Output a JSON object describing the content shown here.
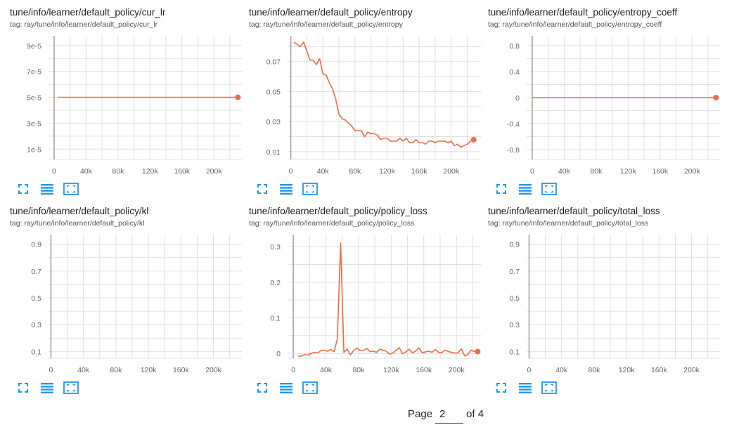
{
  "theme": {
    "accent": "#f26b43",
    "axis": "#9e9e9e",
    "grid": "#e0e0e0",
    "icon": "#2196f3"
  },
  "x_ticks": [
    "0",
    "40k",
    "80k",
    "120k",
    "160k",
    "200k"
  ],
  "cards": [
    {
      "title": "tune/info/learner/default_policy/cur_lr",
      "tag": "tag: ray/tune/info/learner/default_policy/cur_lr"
    },
    {
      "title": "tune/info/learner/default_policy/entropy",
      "tag": "tag: ray/tune/info/learner/default_policy/entropy"
    },
    {
      "title": "tune/info/learner/default_policy/entropy_coeff",
      "tag": "tag: ray/tune/info/learner/default_policy/entropy_coeff"
    },
    {
      "title": "tune/info/learner/default_policy/kl",
      "tag": "tag: ray/tune/info/learner/default_policy/kl"
    },
    {
      "title": "tune/info/learner/default_policy/policy_loss",
      "tag": "tag: ray/tune/info/learner/default_policy/policy_loss"
    },
    {
      "title": "tune/info/learner/default_policy/total_loss",
      "tag": "tag: ray/tune/info/learner/default_policy/total_loss"
    }
  ],
  "chart_data": [
    {
      "type": "line",
      "title": "tune/info/learner/default_policy/cur_lr",
      "xlim": [
        -7000,
        235000
      ],
      "ylim": [
        2e-06,
        9.75e-05
      ],
      "xticks": [
        0,
        40000,
        80000,
        120000,
        160000,
        200000
      ],
      "yticks": [
        "9e-5",
        "7e-5",
        "5e-5",
        "3e-5",
        "1e-5"
      ],
      "ytick_values": [
        9e-05,
        7e-05,
        5e-05,
        3e-05,
        1e-05
      ],
      "series": [
        {
          "x": [
            5000,
            230000
          ],
          "y": [
            5e-05,
            5e-05
          ]
        }
      ]
    },
    {
      "type": "line",
      "title": "tune/info/learner/default_policy/entropy",
      "xlim": [
        -4000,
        237000
      ],
      "ylim": [
        0.0048,
        0.0872
      ],
      "xticks": [
        0,
        40000,
        80000,
        120000,
        160000,
        200000
      ],
      "yticks": [
        "0.07",
        "0.05",
        "0.03",
        "0.01"
      ],
      "ytick_values": [
        0.07,
        0.05,
        0.03,
        0.01
      ],
      "series": [
        {
          "x": [
            4000,
            12000,
            16000,
            20000,
            24000,
            28000,
            32000,
            36000,
            40000,
            44000,
            48000,
            52000,
            56000,
            60000,
            64000,
            68000,
            72000,
            76000,
            80000,
            84000,
            88000,
            92000,
            96000,
            100000,
            104000,
            108000,
            112000,
            116000,
            120000,
            124000,
            128000,
            132000,
            136000,
            140000,
            144000,
            148000,
            152000,
            156000,
            160000,
            164000,
            168000,
            172000,
            176000,
            180000,
            184000,
            188000,
            192000,
            196000,
            200000,
            204000,
            208000,
            212000,
            216000,
            220000,
            224000,
            228000
          ],
          "y": [
            0.083,
            0.08,
            0.083,
            0.077,
            0.071,
            0.071,
            0.068,
            0.072,
            0.062,
            0.061,
            0.056,
            0.052,
            0.045,
            0.035,
            0.032,
            0.031,
            0.029,
            0.027,
            0.024,
            0.024,
            0.024,
            0.02,
            0.023,
            0.022,
            0.022,
            0.021,
            0.018,
            0.019,
            0.019,
            0.017,
            0.017,
            0.017,
            0.019,
            0.017,
            0.019,
            0.016,
            0.016,
            0.018,
            0.016,
            0.016,
            0.015,
            0.017,
            0.017,
            0.016,
            0.017,
            0.017,
            0.017,
            0.016,
            0.017,
            0.014,
            0.015,
            0.013,
            0.014,
            0.015,
            0.017,
            0.018
          ]
        }
      ]
    },
    {
      "type": "line",
      "title": "tune/info/learner/default_policy/entropy_coeff",
      "xlim": [
        -7000,
        235000
      ],
      "ylim": [
        -0.95,
        0.95
      ],
      "xticks": [
        0,
        40000,
        80000,
        120000,
        160000,
        200000
      ],
      "yticks": [
        "0.8",
        "0.4",
        "0",
        "-0.4",
        "-0.8"
      ],
      "ytick_values": [
        0.8,
        0.4,
        0,
        -0.4,
        -0.8
      ],
      "series": [
        {
          "x": [
            0,
            230000
          ],
          "y": [
            0,
            0
          ]
        }
      ]
    },
    {
      "type": "line",
      "title": "tune/info/learner/default_policy/kl",
      "xlim": [
        -3000,
        235000
      ],
      "ylim": [
        0.0498,
        0.9714
      ],
      "xticks": [
        0,
        40000,
        80000,
        120000,
        160000,
        200000
      ],
      "yticks": [
        "0.9",
        "0.7",
        "0.5",
        "0.3",
        "0.1"
      ],
      "ytick_values": [
        0.9,
        0.7,
        0.5,
        0.3,
        0.1
      ],
      "series": []
    },
    {
      "type": "line",
      "title": "tune/info/learner/default_policy/policy_loss",
      "xlim": [
        -7000,
        230000
      ],
      "ylim": [
        -0.0137,
        0.3339
      ],
      "xticks": [
        0,
        40000,
        80000,
        120000,
        160000,
        200000
      ],
      "yticks": [
        "0.3",
        "0.2",
        "0.1",
        "0"
      ],
      "ytick_values": [
        0.3,
        0.2,
        0.1,
        0
      ],
      "series": [
        {
          "x": [
            6000,
            10000,
            14000,
            18000,
            22000,
            26000,
            30000,
            34000,
            38000,
            42000,
            46000,
            50000,
            54000,
            58000,
            62000,
            66000,
            70000,
            74000,
            78000,
            82000,
            86000,
            90000,
            94000,
            98000,
            102000,
            106000,
            110000,
            114000,
            118000,
            122000,
            126000,
            130000,
            134000,
            138000,
            142000,
            146000,
            150000,
            154000,
            158000,
            162000,
            166000,
            170000,
            174000,
            178000,
            182000,
            186000,
            190000,
            194000,
            198000,
            202000,
            206000,
            210000,
            214000,
            218000,
            222000,
            226000
          ],
          "y": [
            -0.008,
            -0.008,
            -0.003,
            -0.005,
            0.0,
            0.003,
            0.001,
            0.008,
            0.009,
            0.006,
            0.011,
            0.005,
            0.04,
            0.31,
            0.003,
            0.012,
            -0.004,
            0.008,
            0.015,
            0.008,
            0.008,
            0.014,
            0.005,
            0.006,
            0.003,
            0.012,
            0.009,
            0.006,
            -0.002,
            0.001,
            0.009,
            0.016,
            -0.001,
            0.004,
            0.012,
            0.002,
            0.006,
            0.016,
            0.002,
            0.004,
            0.006,
            0.003,
            0.011,
            0.003,
            0.002,
            0.009,
            0.005,
            0.003,
            0.001,
            0.002,
            0.013,
            -0.007,
            -0.003,
            0.009,
            0.005,
            0.005
          ]
        }
      ]
    },
    {
      "type": "line",
      "title": "tune/info/learner/default_policy/total_loss",
      "xlim": [
        -3000,
        235000
      ],
      "ylim": [
        0.0498,
        0.9714
      ],
      "xticks": [
        0,
        40000,
        80000,
        120000,
        160000,
        200000
      ],
      "yticks": [
        "0.9",
        "0.7",
        "0.5",
        "0.3",
        "0.1"
      ],
      "ytick_values": [
        0.9,
        0.7,
        0.5,
        0.3,
        0.1
      ],
      "series": []
    }
  ],
  "pager": {
    "prefix": "Page",
    "current": "2",
    "suffix": "of 4"
  },
  "controls": [
    {
      "name": "fullscreen-icon",
      "label": "fullscreen"
    },
    {
      "name": "data-table-icon",
      "label": "data table"
    },
    {
      "name": "fit-domain-icon",
      "label": "fit domain"
    }
  ]
}
